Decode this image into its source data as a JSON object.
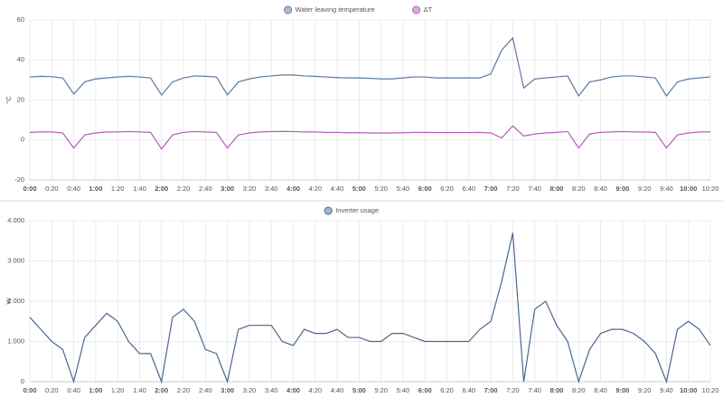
{
  "chart_data": [
    {
      "type": "line",
      "ylabel": "°C",
      "grid": true,
      "xlim": [
        0,
        620
      ],
      "xticks": [
        {
          "value": 0,
          "label": "0:00"
        },
        {
          "value": 20,
          "label": "0:20"
        },
        {
          "value": 40,
          "label": "0:40"
        },
        {
          "value": 60,
          "label": "1:00"
        },
        {
          "value": 80,
          "label": "1:20"
        },
        {
          "value": 100,
          "label": "1:40"
        },
        {
          "value": 120,
          "label": "2:00"
        },
        {
          "value": 140,
          "label": "2:20"
        },
        {
          "value": 160,
          "label": "2:40"
        },
        {
          "value": 180,
          "label": "3:00"
        },
        {
          "value": 200,
          "label": "3:20"
        },
        {
          "value": 220,
          "label": "3:40"
        },
        {
          "value": 240,
          "label": "4:00"
        },
        {
          "value": 260,
          "label": "4:20"
        },
        {
          "value": 280,
          "label": "4:40"
        },
        {
          "value": 300,
          "label": "5:00"
        },
        {
          "value": 320,
          "label": "5:20"
        },
        {
          "value": 340,
          "label": "5:40"
        },
        {
          "value": 360,
          "label": "6:00"
        },
        {
          "value": 380,
          "label": "6:20"
        },
        {
          "value": 400,
          "label": "6:40"
        },
        {
          "value": 420,
          "label": "7:00"
        },
        {
          "value": 440,
          "label": "7:20"
        },
        {
          "value": 460,
          "label": "7:40"
        },
        {
          "value": 480,
          "label": "8:00"
        },
        {
          "value": 500,
          "label": "8:20"
        },
        {
          "value": 520,
          "label": "8:40"
        },
        {
          "value": 540,
          "label": "9:00"
        },
        {
          "value": 560,
          "label": "9:20"
        },
        {
          "value": 580,
          "label": "9:40"
        },
        {
          "value": 600,
          "label": "10:00"
        },
        {
          "value": 620,
          "label": "10:20"
        }
      ],
      "ylim": [
        -20,
        60
      ],
      "yticks": [
        -20,
        0,
        20,
        40,
        60
      ],
      "x": [
        0,
        10,
        20,
        30,
        40,
        50,
        60,
        70,
        80,
        90,
        100,
        110,
        120,
        130,
        140,
        150,
        160,
        170,
        180,
        190,
        200,
        210,
        220,
        230,
        240,
        250,
        260,
        270,
        280,
        290,
        300,
        310,
        320,
        330,
        340,
        350,
        360,
        370,
        380,
        390,
        400,
        410,
        420,
        430,
        440,
        450,
        460,
        470,
        480,
        490,
        500,
        510,
        520,
        530,
        540,
        550,
        560,
        570,
        580,
        590,
        600,
        610,
        620
      ],
      "series": [
        {
          "name": "Water leaving temperature",
          "color": "#5d7a9e",
          "values": [
            31.5,
            31.8,
            31.6,
            31,
            23,
            29,
            30.5,
            31,
            31.5,
            31.8,
            31.5,
            31,
            22.5,
            29,
            31,
            32,
            31.8,
            31.5,
            22.5,
            29,
            30.5,
            31.5,
            32,
            32.5,
            32.5,
            32,
            31.8,
            31.5,
            31.2,
            31,
            31,
            30.8,
            30.5,
            30.5,
            31,
            31.5,
            31.5,
            31,
            31,
            31,
            31,
            31,
            33,
            45,
            51,
            26,
            30.5,
            31,
            31.5,
            32,
            22,
            29,
            30,
            31.5,
            32,
            32,
            31.5,
            31,
            22,
            29,
            30.5,
            31,
            31.5
          ]
        },
        {
          "name": "ΔT",
          "color": "#b25fb6",
          "values": [
            3.8,
            4,
            4,
            3.5,
            -4,
            2.5,
            3.5,
            4,
            4,
            4.2,
            4,
            3.8,
            -4.5,
            2.5,
            3.8,
            4.2,
            4,
            3.8,
            -4,
            2.5,
            3.5,
            4,
            4.2,
            4.3,
            4.2,
            4,
            4,
            3.8,
            3.8,
            3.6,
            3.6,
            3.5,
            3.5,
            3.5,
            3.6,
            3.8,
            3.8,
            3.7,
            3.7,
            3.7,
            3.7,
            3.8,
            3.5,
            1,
            7,
            2,
            3,
            3.5,
            3.8,
            4.2,
            -4,
            3,
            3.8,
            4,
            4.2,
            4,
            4,
            3.8,
            -4,
            2.5,
            3.5,
            4,
            4
          ]
        }
      ]
    },
    {
      "type": "line",
      "ylabel": "W",
      "grid": true,
      "xlim": [
        0,
        620
      ],
      "xticks": [
        {
          "value": 0,
          "label": "0:00"
        },
        {
          "value": 20,
          "label": "0:20"
        },
        {
          "value": 40,
          "label": "0:40"
        },
        {
          "value": 60,
          "label": "1:00"
        },
        {
          "value": 80,
          "label": "1:20"
        },
        {
          "value": 100,
          "label": "1:40"
        },
        {
          "value": 120,
          "label": "2:00"
        },
        {
          "value": 140,
          "label": "2:20"
        },
        {
          "value": 160,
          "label": "2:40"
        },
        {
          "value": 180,
          "label": "3:00"
        },
        {
          "value": 200,
          "label": "3:20"
        },
        {
          "value": 220,
          "label": "3:40"
        },
        {
          "value": 240,
          "label": "4:00"
        },
        {
          "value": 260,
          "label": "4:20"
        },
        {
          "value": 280,
          "label": "4:40"
        },
        {
          "value": 300,
          "label": "5:00"
        },
        {
          "value": 320,
          "label": "5:20"
        },
        {
          "value": 340,
          "label": "5:40"
        },
        {
          "value": 360,
          "label": "6:00"
        },
        {
          "value": 380,
          "label": "6:20"
        },
        {
          "value": 400,
          "label": "6:40"
        },
        {
          "value": 420,
          "label": "7:00"
        },
        {
          "value": 440,
          "label": "7:20"
        },
        {
          "value": 460,
          "label": "7:40"
        },
        {
          "value": 480,
          "label": "8:00"
        },
        {
          "value": 500,
          "label": "8:20"
        },
        {
          "value": 520,
          "label": "8:40"
        },
        {
          "value": 540,
          "label": "9:00"
        },
        {
          "value": 560,
          "label": "9:20"
        },
        {
          "value": 580,
          "label": "9:40"
        },
        {
          "value": 600,
          "label": "10:00"
        },
        {
          "value": 620,
          "label": "10:20"
        }
      ],
      "ylim": [
        0,
        4000
      ],
      "yticks": [
        0,
        {
          "value": 1000,
          "label": "1.000"
        },
        {
          "value": 2000,
          "label": "2.000"
        },
        {
          "value": 3000,
          "label": "3.000"
        },
        {
          "value": 4000,
          "label": "4.000"
        }
      ],
      "x": [
        0,
        10,
        20,
        30,
        40,
        50,
        60,
        70,
        80,
        90,
        100,
        110,
        120,
        130,
        140,
        150,
        160,
        170,
        180,
        190,
        200,
        210,
        220,
        230,
        240,
        250,
        260,
        270,
        280,
        290,
        300,
        310,
        320,
        330,
        340,
        350,
        360,
        370,
        380,
        390,
        400,
        410,
        420,
        430,
        440,
        450,
        460,
        470,
        480,
        490,
        500,
        510,
        520,
        530,
        540,
        550,
        560,
        570,
        580,
        590,
        600,
        610,
        620
      ],
      "series": [
        {
          "name": "Inverter usage",
          "color": "#4a6790",
          "values": [
            1600,
            1300,
            1000,
            800,
            0,
            1100,
            1400,
            1700,
            1500,
            1000,
            700,
            700,
            0,
            1600,
            1800,
            1500,
            800,
            700,
            0,
            1300,
            1400,
            1400,
            1400,
            1000,
            900,
            1300,
            1200,
            1200,
            1300,
            1100,
            1100,
            1000,
            1000,
            1200,
            1200,
            1100,
            1000,
            1000,
            1000,
            1000,
            1000,
            1300,
            1500,
            2500,
            3700,
            0,
            1800,
            2000,
            1400,
            1000,
            0,
            800,
            1200,
            1300,
            1300,
            1200,
            1000,
            700,
            0,
            1300,
            1500,
            1300,
            900
          ]
        }
      ]
    }
  ]
}
